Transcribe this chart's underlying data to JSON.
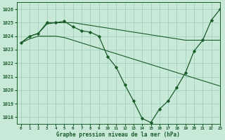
{
  "title": "Graphe pression niveau de la mer (hPa)",
  "bg_color": "#c8e8d8",
  "grid_color": "#99ccbb",
  "line_color": "#1a5c2a",
  "xlim": [
    -0.5,
    23
  ],
  "ylim": [
    1017.5,
    1026.5
  ],
  "yticks": [
    1018,
    1019,
    1020,
    1021,
    1022,
    1023,
    1024,
    1025,
    1026
  ],
  "xticks": [
    0,
    1,
    2,
    3,
    4,
    5,
    6,
    7,
    8,
    9,
    10,
    11,
    12,
    13,
    14,
    15,
    16,
    17,
    18,
    19,
    20,
    21,
    22,
    23
  ],
  "series_main": [
    1023.5,
    1024.0,
    1024.2,
    1025.0,
    1025.0,
    1025.1,
    1024.7,
    1024.4,
    1024.3,
    1024.0,
    1022.5,
    1021.7,
    1020.4,
    1019.2,
    1017.9,
    1017.6,
    1018.6,
    1019.2,
    1020.2,
    1021.3,
    1022.9,
    1023.7,
    1025.2,
    1026.0
  ],
  "series_upper": [
    1023.5,
    1024.0,
    1024.2,
    1024.9,
    1025.0,
    1025.0,
    1025.0,
    1024.9,
    1024.8,
    1024.7,
    1024.6,
    1024.5,
    1024.4,
    1024.3,
    1024.2,
    1024.1,
    1024.0,
    1023.9,
    1023.8,
    1023.7,
    1023.7,
    1023.7,
    1023.7,
    1023.7
  ],
  "series_lower": [
    1023.5,
    1023.8,
    1024.0,
    1024.0,
    1024.0,
    1023.9,
    1023.7,
    1023.5,
    1023.3,
    1023.1,
    1022.9,
    1022.7,
    1022.5,
    1022.3,
    1022.1,
    1021.9,
    1021.7,
    1021.5,
    1021.3,
    1021.1,
    1020.9,
    1020.7,
    1020.5,
    1020.3
  ]
}
